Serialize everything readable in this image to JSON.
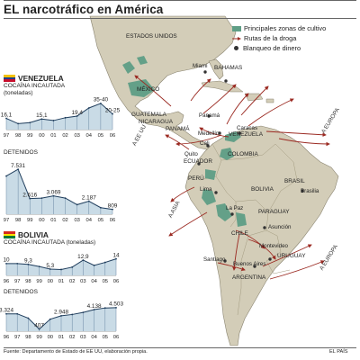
{
  "headline": "EL narcotráfico en América",
  "legend": {
    "items": [
      {
        "kind": "area",
        "label": "Principales zonas de cultivo",
        "color": "#5f9e86"
      },
      {
        "kind": "line",
        "label": "Rutas de la droga",
        "color": "#9b2a22"
      },
      {
        "kind": "dot",
        "label": "Blanqueo de dinero",
        "color": "#333333"
      }
    ]
  },
  "map_labels": {
    "estados_unidos": "ESTADOS UNIDOS",
    "mexico": "MÉXICO",
    "bahamas": "BAHAMAS",
    "miami": "Miami",
    "guatemala": "GUATEMALA",
    "nicaragua": "NICARAGUA",
    "panama_country": "PANAMÁ",
    "panama_city": "Panamá",
    "medellin": "Medellín",
    "caracas": "Caracas",
    "cali": "Cali",
    "colombia": "COLOMBIA",
    "venezuela_country": "VENEZUELA",
    "quito": "Quito",
    "ecuador": "ECUADOR",
    "peru": "PERÚ",
    "lima": "Lima",
    "bolivia_country": "BOLIVIA",
    "la_paz": "La Paz",
    "brasil": "BRASIL",
    "brasilia": "Brasilia",
    "paraguay": "PARAGUAY",
    "asuncion": "Asunción",
    "chile": "CHILE",
    "santiago": "Santiago",
    "buenos_aires": "Buenos Aires",
    "montevideo": "Montevideo",
    "uruguay": "URUGUAY",
    "argentina": "ARGENTINA",
    "a_ee_uu": "A EE UU",
    "a_europa_1": "A EUROPA",
    "a_europa_2": "A EUROPA",
    "a_asia": "A ASIA"
  },
  "panels": {
    "venezuela": {
      "country": "VENEZUELA",
      "cocaine_label": "COCAÍNA INCAUTADA\n(toneladas)",
      "detained_label": "DETENIDOS"
    },
    "bolivia": {
      "country": "BOLIVIA",
      "cocaine_label": "COCAÍNA INCAUTADA (toneladas)",
      "detained_label": "DETENIDOS"
    }
  },
  "footer": {
    "source": "Fuente: Departamento de Estado de EE UU, elaboración propia.",
    "credit": "EL PAÍS"
  },
  "chart_data": [
    {
      "id": "venezuela-cocaina",
      "type": "area",
      "title": "COCAÍNA INCAUTADA (toneladas)",
      "x": [
        "97",
        "98",
        "99",
        "00",
        "01",
        "02",
        "03",
        "04",
        "05",
        "06"
      ],
      "values": [
        16.1,
        8.5,
        10,
        15.1,
        13,
        17,
        19.4,
        31,
        37.5,
        22.5
      ],
      "data_labels": [
        "16,1",
        "",
        "",
        "15,1",
        "",
        "",
        "19,4",
        "",
        "35-40",
        "20-25"
      ],
      "ylim": [
        0,
        40
      ],
      "color": "#c9dbe6"
    },
    {
      "id": "venezuela-detenidos",
      "type": "area",
      "title": "DETENIDOS",
      "x": [
        "97",
        "98",
        "99",
        "00",
        "01",
        "02",
        "03",
        "04",
        "05",
        "06"
      ],
      "values": [
        6400,
        7531,
        2616,
        2700,
        3069,
        2700,
        1600,
        2187,
        1100,
        809
      ],
      "data_labels": [
        "",
        "7.531",
        "2.616",
        "",
        "3.069",
        "",
        "",
        "2.187",
        "",
        "809"
      ],
      "ylim": [
        0,
        8000
      ],
      "color": "#c9dbe6"
    },
    {
      "id": "bolivia-cocaina",
      "type": "area",
      "title": "COCAÍNA INCAUTADA (toneladas)",
      "x": [
        "96",
        "97",
        "98",
        "99",
        "00",
        "01",
        "02",
        "03",
        "04",
        "05",
        "06"
      ],
      "values": [
        10,
        10,
        9.3,
        7.5,
        5.3,
        5,
        7,
        12.9,
        8.5,
        11,
        14
      ],
      "data_labels": [
        "10",
        "",
        "9,3",
        "",
        "5,3",
        "",
        "",
        "12,9",
        "",
        "",
        "14"
      ],
      "ylim": [
        0,
        16
      ],
      "color": "#c9dbe6"
    },
    {
      "id": "bolivia-detenidos",
      "type": "area",
      "title": "DETENIDOS",
      "x": [
        "96",
        "97",
        "98",
        "99",
        "00",
        "01",
        "02",
        "03",
        "04",
        "05",
        "06"
      ],
      "values": [
        3324,
        3324,
        2500,
        407,
        2300,
        2948,
        3200,
        3600,
        4138,
        4450,
        4503
      ],
      "data_labels": [
        "3.324",
        "",
        "",
        "407",
        "",
        "2.948",
        "",
        "",
        "4.138",
        "",
        "4.503"
      ],
      "ylim": [
        0,
        5000
      ],
      "color": "#c9dbe6"
    }
  ]
}
